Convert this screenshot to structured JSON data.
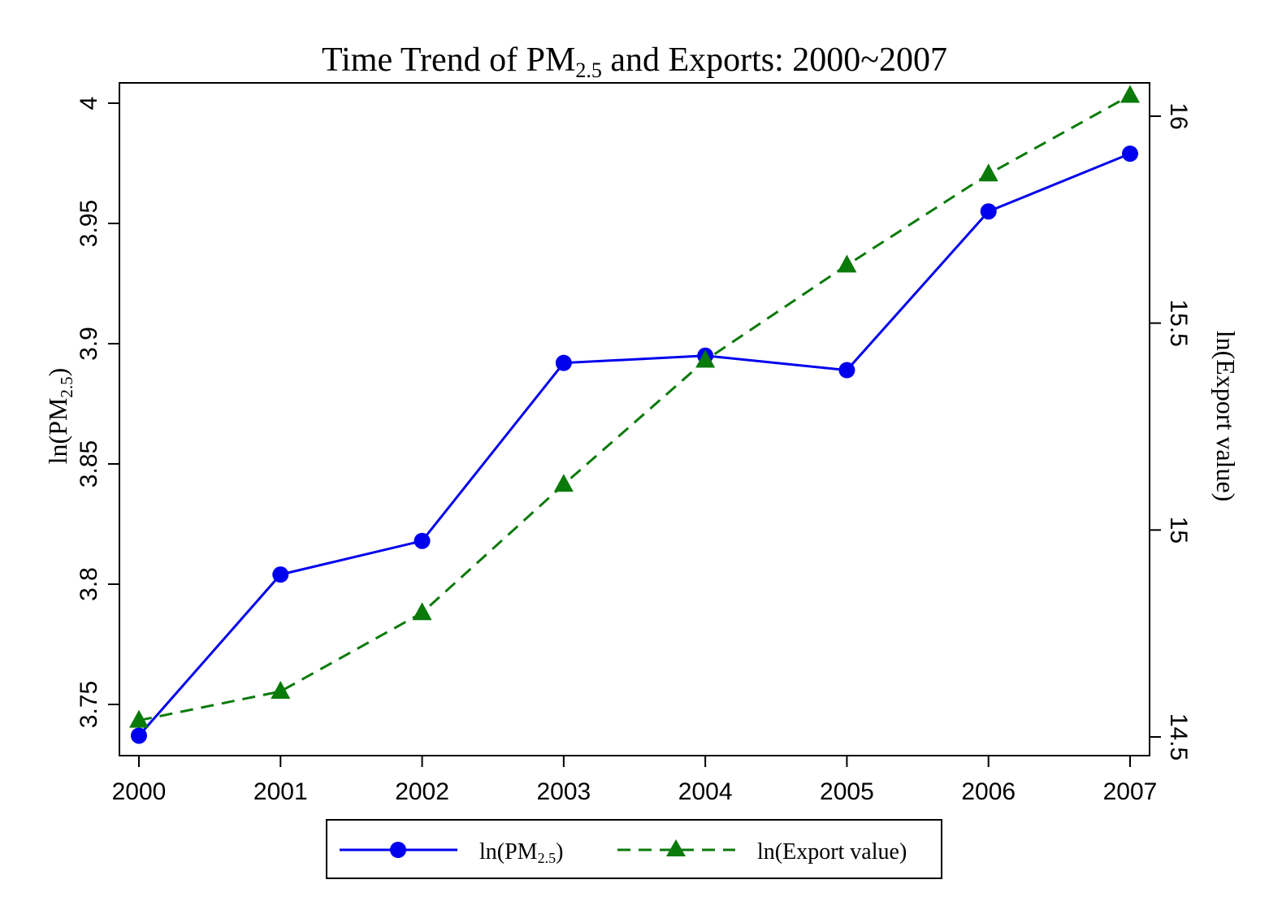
{
  "chart_data": {
    "type": "line",
    "title": {
      "prefix": "Time Trend of PM",
      "sub": "2.5",
      "suffix": " and Exports: 2000~2007"
    },
    "x": [
      2000,
      2001,
      2002,
      2003,
      2004,
      2005,
      2006,
      2007
    ],
    "xlim": [
      2000,
      2007
    ],
    "y_left": {
      "label": {
        "prefix": "ln(PM",
        "sub": "2.5",
        "suffix": ")"
      },
      "lim": [
        3.745,
        4.0
      ],
      "ticks": [
        "3.75",
        "3.8",
        "3.85",
        "3.9",
        "3.95",
        "4"
      ]
    },
    "y_right": {
      "label": "ln(Export value)",
      "lim": [
        14.55,
        16.0
      ],
      "ticks": [
        "14.5",
        "15",
        "15.5",
        "16"
      ]
    },
    "series": [
      {
        "name": {
          "prefix": "ln(PM",
          "sub": "2.5",
          "suffix": ")"
        },
        "axis": "left",
        "style": "solid",
        "marker": "circle",
        "color": "#0000ee",
        "values": [
          3.737,
          3.804,
          3.818,
          3.892,
          3.895,
          3.889,
          3.955,
          3.979
        ]
      },
      {
        "name": "ln(Export value)",
        "axis": "right",
        "style": "dashed",
        "marker": "triangle",
        "color": "#0a7a0a",
        "values": [
          14.54,
          14.61,
          14.8,
          15.11,
          15.41,
          15.64,
          15.86,
          16.05
        ]
      }
    ],
    "grid": false,
    "legend": "bottom"
  }
}
